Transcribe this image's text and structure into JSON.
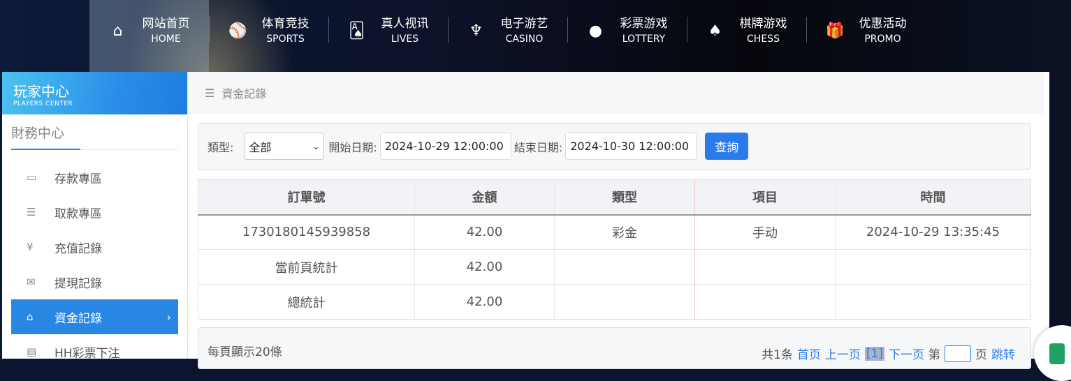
{
  "nav": [
    {
      "zh": "网站首页",
      "en": "HOME",
      "icon": "⌂",
      "name": "home"
    },
    {
      "zh": "体育竞技",
      "en": "SPORTS",
      "icon": "⚾",
      "name": "sports"
    },
    {
      "zh": "真人视讯",
      "en": "LIVES",
      "icon": "🂡",
      "name": "lives"
    },
    {
      "zh": "电子游艺",
      "en": "CASINO",
      "icon": "♆",
      "name": "casino"
    },
    {
      "zh": "彩票游戏",
      "en": "LOTTERY",
      "icon": "●",
      "name": "lottery"
    },
    {
      "zh": "棋牌游戏",
      "en": "CHESS",
      "icon": "♠",
      "name": "chess"
    },
    {
      "zh": "优惠活动",
      "en": "PROMO",
      "icon": "🎁",
      "name": "promo"
    }
  ],
  "sidebar": {
    "title": "玩家中心",
    "subtitle": "PLAYERS CENTER",
    "section": "財務中心",
    "items": [
      {
        "label": "存款專區",
        "icon": "▭"
      },
      {
        "label": "取款專區",
        "icon": "☰"
      },
      {
        "label": "充值記錄",
        "icon": "¥"
      },
      {
        "label": "提現記錄",
        "icon": "✉"
      },
      {
        "label": "資金記錄",
        "icon": "⌂",
        "active": true
      },
      {
        "label": "HH彩票下注",
        "icon": "▤"
      }
    ]
  },
  "breadcrumb": {
    "icon": "☰",
    "label": "資金記錄"
  },
  "filter": {
    "type_label": "類型:",
    "type_value": "全部",
    "start_label": "開始日期:",
    "start_value": "2024-10-29 12:00:00",
    "end_label": "結束日期:",
    "end_value": "2024-10-30 12:00:00",
    "query_label": "查詢"
  },
  "table": {
    "headers": [
      "訂單號",
      "金額",
      "類型",
      "項目",
      "時間"
    ],
    "rows": [
      [
        "1730180145939858",
        "42.00",
        "彩金",
        "手动",
        "2024-10-29 13:35:45"
      ],
      [
        "當前頁統計",
        "42.00",
        "",
        "",
        ""
      ],
      [
        "總統計",
        "42.00",
        "",
        "",
        ""
      ]
    ]
  },
  "pager": {
    "per_page": "每頁顯示20條",
    "total": "共1条",
    "first": "首页",
    "prev": "上一页",
    "current": "[1]",
    "next": "下一页",
    "goto_prefix": "第",
    "goto_suffix": "页",
    "jump": "跳转"
  },
  "colors": {
    "accent": "#2a86e3",
    "button": "#2a7be8"
  }
}
